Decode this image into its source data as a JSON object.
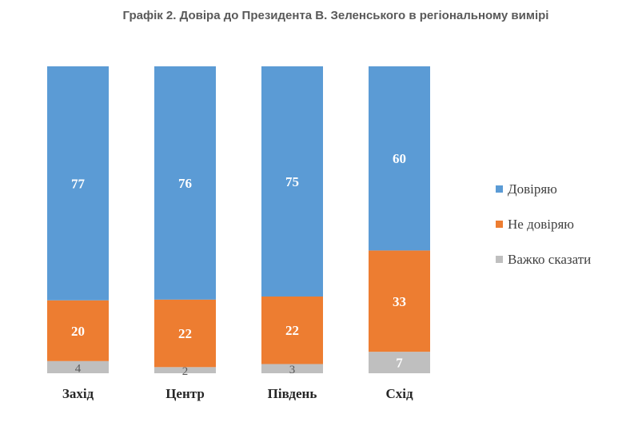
{
  "chart_data": {
    "type": "bar",
    "stacked": true,
    "title": "Графік 2. Довіра до Президента В. Зеленського в регіональному вимірі",
    "categories": [
      "Захід",
      "Центр",
      "Південь",
      "Схід"
    ],
    "series": [
      {
        "name": "Довіряю",
        "color": "#5b9bd5",
        "values": [
          77,
          76,
          75,
          60
        ]
      },
      {
        "name": "Не довіряю",
        "color": "#ed7d31",
        "values": [
          20,
          22,
          22,
          33
        ]
      },
      {
        "name": "Важко сказати",
        "color": "#bfbfbf",
        "values": [
          4,
          2,
          3,
          7
        ]
      }
    ],
    "ylim": [
      0,
      100
    ],
    "grid": false,
    "legend": "right"
  }
}
